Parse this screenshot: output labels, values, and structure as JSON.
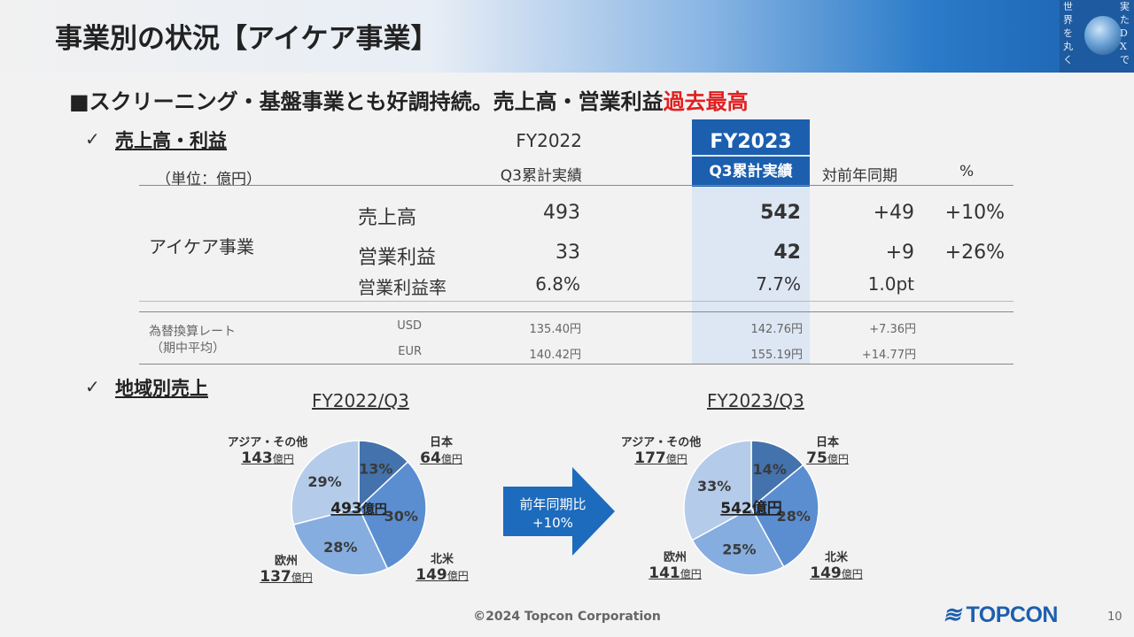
{
  "header": {
    "title": "事業別の状況【アイケア事業】",
    "deco_text": [
      "実",
      "た",
      "D",
      "X",
      "で",
      "世",
      "界",
      "を",
      "丸",
      "く"
    ]
  },
  "headline": {
    "prefix": "■スクリーニング・基盤事業とも好調持続。売上高・営業利益",
    "highlight": "過去最高",
    "highlight_color": "#e02020"
  },
  "section1": {
    "check": "✓",
    "title": "売上高・利益",
    "unit": "（単位：億円）",
    "col_fy2022": "FY2022",
    "col_fy2022_sub": "Q3累計実績",
    "col_fy2023": "FY2023",
    "col_fy2023_sub": "Q3累計実績",
    "col_yoy": "対前年同期",
    "col_pct": "%",
    "segment": "アイケア事業",
    "rows": [
      {
        "label": "売上高",
        "fy2022": "493",
        "fy2023": "542",
        "yoy": "+49",
        "pct": "+10%"
      },
      {
        "label": "営業利益",
        "fy2022": "33",
        "fy2023": "42",
        "yoy": "+9",
        "pct": "+26%"
      },
      {
        "label": "営業利益率",
        "fy2022": "6.8%",
        "fy2023": "7.7%",
        "yoy": "1.0pt",
        "pct": ""
      }
    ],
    "fx_label1": "為替換算レート",
    "fx_label2": "（期中平均）",
    "fx": [
      {
        "cur": "USD",
        "fy2022": "135.40円",
        "fy2023": "142.76円",
        "yoy": "+7.36円"
      },
      {
        "cur": "EUR",
        "fy2022": "140.42円",
        "fy2023": "155.19円",
        "yoy": "+14.77円"
      }
    ]
  },
  "section2": {
    "check": "✓",
    "title": "地域別売上"
  },
  "pies": [
    {
      "title": "FY2022/Q3",
      "center_value": "493",
      "center_unit": "億円",
      "slices": [
        {
          "name": "日本",
          "value": "64",
          "unit": "億円",
          "pct": "13%",
          "share": 13,
          "color": "#4472ac"
        },
        {
          "name": "北米",
          "value": "149",
          "unit": "億円",
          "pct": "30%",
          "share": 30,
          "color": "#5b8ed0"
        },
        {
          "name": "欧州",
          "value": "137",
          "unit": "億円",
          "pct": "28%",
          "share": 28,
          "color": "#86ade0"
        },
        {
          "name": "アジア・その他",
          "value": "143",
          "unit": "億円",
          "pct": "29%",
          "share": 29,
          "color": "#b4cbea"
        }
      ]
    },
    {
      "title": "FY2023/Q3",
      "center_value": "542",
      "center_unit": "億円",
      "slices": [
        {
          "name": "日本",
          "value": "75",
          "unit": "億円",
          "pct": "14%",
          "share": 14,
          "color": "#4472ac"
        },
        {
          "name": "北米",
          "value": "149",
          "unit": "億円",
          "pct": "28%",
          "share": 28,
          "color": "#5b8ed0"
        },
        {
          "name": "欧州",
          "value": "141",
          "unit": "億円",
          "pct": "25%",
          "share": 25,
          "color": "#86ade0"
        },
        {
          "name": "アジア・その他",
          "value": "177",
          "unit": "億円",
          "pct": "33%",
          "share": 33,
          "color": "#b4cbea"
        }
      ]
    }
  ],
  "arrow": {
    "line1": "前年同期比",
    "line2": "+10%",
    "color": "#1c6bbd"
  },
  "footer": {
    "copyright": "©2024 Topcon Corporation",
    "logo": "TOPCON",
    "page": "10"
  }
}
